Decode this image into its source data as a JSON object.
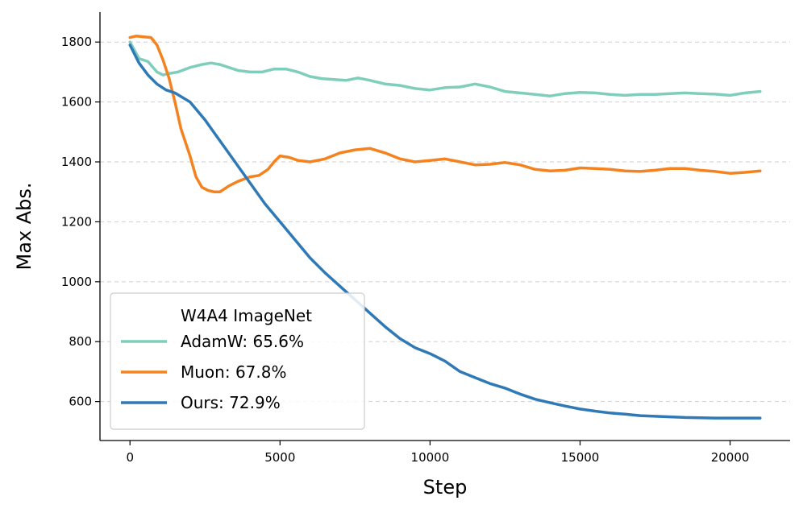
{
  "chart_data": {
    "type": "line",
    "xlabel": "Step",
    "ylabel": "Max Abs.",
    "xlim": [
      -1000,
      22000
    ],
    "ylim": [
      470,
      1900
    ],
    "xticks": [
      0,
      5000,
      10000,
      15000,
      20000
    ],
    "yticks": [
      600,
      800,
      1000,
      1200,
      1400,
      1600,
      1800
    ],
    "grid": "horizontal dashed",
    "legend": {
      "title": "W4A4 ImageNet",
      "placement": "lower-left"
    },
    "series": [
      {
        "name": "AdamW: 65.6%",
        "color": "#7fcdbb",
        "x": [
          0,
          300,
          600,
          900,
          1100,
          1300,
          1600,
          2000,
          2400,
          2700,
          3000,
          3300,
          3600,
          4000,
          4400,
          4800,
          5200,
          5600,
          6000,
          6400,
          6800,
          7200,
          7600,
          8000,
          8500,
          9000,
          9500,
          10000,
          10500,
          11000,
          11500,
          12000,
          12500,
          13000,
          13500,
          14000,
          14500,
          15000,
          15500,
          16000,
          16500,
          17000,
          17500,
          18000,
          18500,
          19000,
          19500,
          20000,
          20500,
          21000
        ],
        "y": [
          1800,
          1745,
          1735,
          1700,
          1690,
          1695,
          1700,
          1715,
          1725,
          1730,
          1725,
          1715,
          1705,
          1700,
          1700,
          1710,
          1710,
          1700,
          1685,
          1678,
          1675,
          1672,
          1680,
          1672,
          1660,
          1655,
          1645,
          1640,
          1648,
          1650,
          1660,
          1650,
          1635,
          1630,
          1625,
          1620,
          1628,
          1632,
          1630,
          1625,
          1622,
          1625,
          1625,
          1628,
          1630,
          1628,
          1626,
          1622,
          1630,
          1635
        ]
      },
      {
        "name": "Muon: 67.8%",
        "color": "#f4831f",
        "x": [
          0,
          200,
          400,
          700,
          900,
          1100,
          1300,
          1500,
          1700,
          2000,
          2200,
          2400,
          2600,
          2800,
          3000,
          3300,
          3600,
          4000,
          4300,
          4600,
          4800,
          5000,
          5300,
          5600,
          6000,
          6500,
          7000,
          7500,
          8000,
          8500,
          9000,
          9500,
          10000,
          10500,
          11000,
          11500,
          12000,
          12500,
          13000,
          13500,
          14000,
          14500,
          15000,
          15500,
          16000,
          16500,
          17000,
          17500,
          18000,
          18500,
          19000,
          19500,
          20000,
          20500,
          21000
        ],
        "y": [
          1815,
          1820,
          1818,
          1815,
          1790,
          1740,
          1680,
          1600,
          1510,
          1420,
          1350,
          1315,
          1305,
          1300,
          1300,
          1320,
          1335,
          1350,
          1355,
          1375,
          1400,
          1420,
          1415,
          1405,
          1400,
          1410,
          1430,
          1440,
          1445,
          1430,
          1410,
          1400,
          1405,
          1410,
          1400,
          1390,
          1392,
          1398,
          1390,
          1375,
          1370,
          1372,
          1380,
          1378,
          1375,
          1370,
          1368,
          1372,
          1378,
          1378,
          1372,
          1368,
          1362,
          1365,
          1370
        ]
      },
      {
        "name": "Ours: 72.9%",
        "color": "#2f7ab6",
        "x": [
          0,
          300,
          600,
          900,
          1200,
          1500,
          2000,
          2500,
          3000,
          3500,
          4000,
          4500,
          5000,
          5500,
          6000,
          6500,
          7000,
          7500,
          8000,
          8500,
          9000,
          9500,
          10000,
          10500,
          11000,
          11500,
          12000,
          12500,
          13000,
          13500,
          14000,
          14500,
          15000,
          15500,
          16000,
          16500,
          17000,
          17500,
          18000,
          18500,
          19000,
          19500,
          20000,
          20500,
          21000
        ],
        "y": [
          1790,
          1730,
          1690,
          1660,
          1640,
          1630,
          1600,
          1540,
          1470,
          1400,
          1330,
          1260,
          1200,
          1140,
          1080,
          1030,
          985,
          940,
          895,
          850,
          810,
          780,
          760,
          735,
          700,
          680,
          660,
          645,
          625,
          608,
          596,
          585,
          575,
          568,
          562,
          558,
          553,
          551,
          549,
          547,
          546,
          545,
          545,
          545,
          545
        ]
      }
    ]
  }
}
